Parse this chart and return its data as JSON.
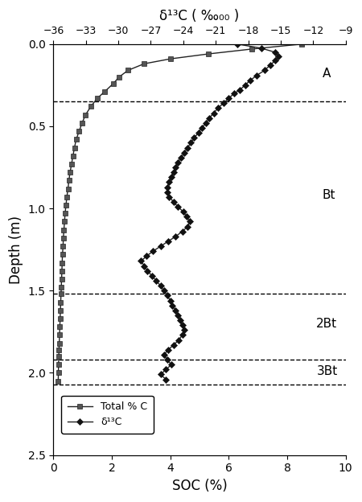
{
  "top_xlabel": "δ¹³C (‰₀₀)",
  "bottom_xlabel": "SOC (%)",
  "ylabel": "Depth (m)",
  "xlim_soc": [
    0,
    10
  ],
  "xlim_d13c": [
    -36,
    -9
  ],
  "ylim": [
    0.0,
    2.5
  ],
  "xticks_soc": [
    0,
    2,
    4,
    6,
    8,
    10
  ],
  "xticks_d13c": [
    -36,
    -33,
    -30,
    -27,
    -24,
    -21,
    -18,
    -15,
    -12,
    -9
  ],
  "yticks": [
    0.0,
    0.5,
    1.0,
    1.5,
    2.0,
    2.5
  ],
  "horizon_lines": [
    0.35,
    1.52,
    1.92,
    2.07
  ],
  "horizon_labels": [
    {
      "text": "A",
      "depth": 0.18,
      "x": 9.2
    },
    {
      "text": "Bt",
      "depth": 0.92,
      "x": 9.2
    },
    {
      "text": "2Bt",
      "depth": 1.7,
      "x": 9.0
    },
    {
      "text": "3Bt",
      "depth": 1.99,
      "x": 9.0
    }
  ],
  "soc_data": [
    [
      8.5,
      0.0
    ],
    [
      6.8,
      0.03
    ],
    [
      5.3,
      0.06
    ],
    [
      4.0,
      0.09
    ],
    [
      3.1,
      0.12
    ],
    [
      2.55,
      0.16
    ],
    [
      2.25,
      0.2
    ],
    [
      2.05,
      0.24
    ],
    [
      1.75,
      0.29
    ],
    [
      1.5,
      0.33
    ],
    [
      1.28,
      0.38
    ],
    [
      1.1,
      0.43
    ],
    [
      0.98,
      0.48
    ],
    [
      0.88,
      0.53
    ],
    [
      0.78,
      0.58
    ],
    [
      0.72,
      0.63
    ],
    [
      0.67,
      0.68
    ],
    [
      0.62,
      0.73
    ],
    [
      0.57,
      0.78
    ],
    [
      0.53,
      0.83
    ],
    [
      0.5,
      0.88
    ],
    [
      0.46,
      0.93
    ],
    [
      0.43,
      0.98
    ],
    [
      0.4,
      1.03
    ],
    [
      0.38,
      1.08
    ],
    [
      0.36,
      1.13
    ],
    [
      0.34,
      1.18
    ],
    [
      0.33,
      1.23
    ],
    [
      0.31,
      1.28
    ],
    [
      0.3,
      1.33
    ],
    [
      0.29,
      1.38
    ],
    [
      0.28,
      1.43
    ],
    [
      0.27,
      1.48
    ],
    [
      0.26,
      1.52
    ],
    [
      0.25,
      1.57
    ],
    [
      0.24,
      1.62
    ],
    [
      0.23,
      1.67
    ],
    [
      0.22,
      1.72
    ],
    [
      0.21,
      1.77
    ],
    [
      0.2,
      1.82
    ],
    [
      0.19,
      1.86
    ],
    [
      0.185,
      1.9
    ],
    [
      0.175,
      1.95
    ],
    [
      0.17,
      2.0
    ],
    [
      0.165,
      2.05
    ]
  ],
  "d13c_data": [
    [
      -19.0,
      0.0
    ],
    [
      -16.8,
      0.025
    ],
    [
      -15.5,
      0.05
    ],
    [
      -15.2,
      0.075
    ],
    [
      -15.5,
      0.1
    ],
    [
      -16.0,
      0.13
    ],
    [
      -16.5,
      0.16
    ],
    [
      -17.2,
      0.19
    ],
    [
      -17.8,
      0.22
    ],
    [
      -18.3,
      0.25
    ],
    [
      -18.8,
      0.28
    ],
    [
      -19.3,
      0.3
    ],
    [
      -19.8,
      0.33
    ],
    [
      -20.3,
      0.36
    ],
    [
      -20.8,
      0.39
    ],
    [
      -21.2,
      0.42
    ],
    [
      -21.6,
      0.45
    ],
    [
      -21.9,
      0.48
    ],
    [
      -22.3,
      0.51
    ],
    [
      -22.6,
      0.54
    ],
    [
      -23.0,
      0.57
    ],
    [
      -23.3,
      0.6
    ],
    [
      -23.6,
      0.63
    ],
    [
      -23.9,
      0.66
    ],
    [
      -24.2,
      0.69
    ],
    [
      -24.5,
      0.72
    ],
    [
      -24.7,
      0.75
    ],
    [
      -24.9,
      0.78
    ],
    [
      -25.1,
      0.81
    ],
    [
      -25.3,
      0.84
    ],
    [
      -25.5,
      0.87
    ],
    [
      -25.5,
      0.9
    ],
    [
      -25.3,
      0.93
    ],
    [
      -24.9,
      0.96
    ],
    [
      -24.5,
      0.99
    ],
    [
      -24.0,
      1.02
    ],
    [
      -23.7,
      1.05
    ],
    [
      -23.4,
      1.08
    ],
    [
      -23.6,
      1.11
    ],
    [
      -24.1,
      1.14
    ],
    [
      -24.7,
      1.17
    ],
    [
      -25.4,
      1.2
    ],
    [
      -26.1,
      1.23
    ],
    [
      -26.8,
      1.26
    ],
    [
      -27.4,
      1.29
    ],
    [
      -27.9,
      1.32
    ],
    [
      -27.6,
      1.35
    ],
    [
      -27.3,
      1.38
    ],
    [
      -26.9,
      1.41
    ],
    [
      -26.5,
      1.44
    ],
    [
      -26.1,
      1.47
    ],
    [
      -25.8,
      1.5
    ],
    [
      -25.5,
      1.53
    ],
    [
      -25.2,
      1.56
    ],
    [
      -25.0,
      1.59
    ],
    [
      -24.7,
      1.62
    ],
    [
      -24.5,
      1.65
    ],
    [
      -24.3,
      1.68
    ],
    [
      -24.1,
      1.71
    ],
    [
      -23.9,
      1.74
    ],
    [
      -24.1,
      1.77
    ],
    [
      -24.4,
      1.8
    ],
    [
      -24.9,
      1.83
    ],
    [
      -25.4,
      1.86
    ],
    [
      -25.8,
      1.89
    ],
    [
      -25.5,
      1.92
    ],
    [
      -25.1,
      1.95
    ],
    [
      -25.6,
      1.98
    ],
    [
      -26.1,
      2.01
    ],
    [
      -25.6,
      2.04
    ]
  ],
  "legend_soc_label": "Total % C",
  "legend_d13c_label": "δ¹³C",
  "color": "#222222",
  "markersize_soc": 5,
  "markersize_d13c": 4,
  "linewidth": 1.0
}
